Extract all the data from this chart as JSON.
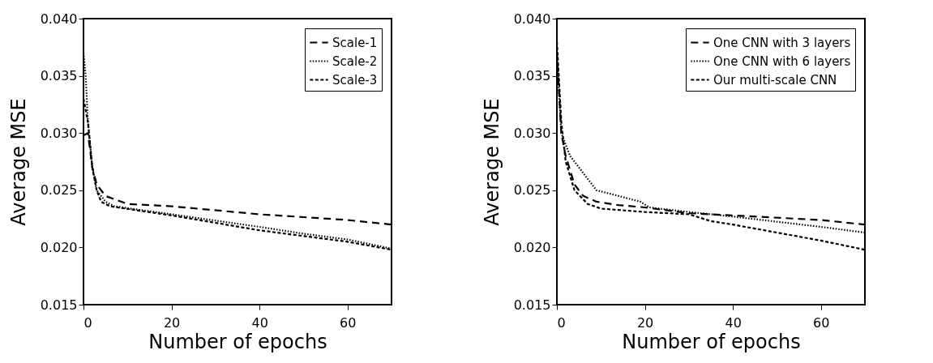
{
  "chart_data": [
    {
      "type": "line",
      "xlabel": "Number of epochs",
      "ylabel": "Average MSE",
      "xlim": [
        0,
        70
      ],
      "ylim": [
        0.015,
        0.04
      ],
      "xticks": [
        0,
        20,
        40,
        60
      ],
      "yticks": [
        0.015,
        {
          "value": 0.02,
          "label": "0.020"
        },
        0.025,
        {
          "value": 0.03,
          "label": "0.030"
        },
        0.035,
        {
          "value": 0.04,
          "label": "0.040"
        }
      ],
      "legend": "top right",
      "series": [
        {
          "name": "Scale-1",
          "color": "#000000",
          "line_style": "dashed",
          "x": [
            0,
            1,
            2,
            3,
            5,
            10,
            20,
            40,
            60,
            70
          ],
          "values": [
            0.0298,
            0.03,
            0.027,
            0.0255,
            0.0245,
            0.0238,
            0.0236,
            0.0229,
            0.0224,
            0.022
          ]
        },
        {
          "name": "Scale-2",
          "color": "#000000",
          "line_style": "dotted",
          "x": [
            0,
            0.5,
            1,
            2,
            3,
            5,
            7,
            20,
            40,
            50,
            60,
            70
          ],
          "values": [
            0.037,
            0.035,
            0.031,
            0.027,
            0.025,
            0.024,
            0.0236,
            0.0229,
            0.0218,
            0.0212,
            0.0207,
            0.0199
          ]
        },
        {
          "name": "Scale-3",
          "color": "#000000",
          "line_style": "dashed",
          "x": [
            0,
            1,
            2,
            3,
            4,
            6,
            20,
            40,
            50,
            60,
            70
          ],
          "values": [
            0.033,
            0.031,
            0.027,
            0.025,
            0.024,
            0.0236,
            0.0228,
            0.0215,
            0.021,
            0.0205,
            0.0198
          ]
        }
      ]
    },
    {
      "type": "line",
      "xlabel": "Number of epochs",
      "ylabel": "Average MSE",
      "xlim": [
        0,
        70
      ],
      "ylim": [
        0.015,
        0.04
      ],
      "xticks": [
        0,
        20,
        40,
        60
      ],
      "yticks": [
        0.015,
        {
          "value": 0.02,
          "label": "0.020"
        },
        0.025,
        {
          "value": 0.03,
          "label": "0.030"
        },
        0.035,
        {
          "value": 0.04,
          "label": "0.040"
        }
      ],
      "legend": "top right",
      "series": [
        {
          "name": "One CNN with 3 layers",
          "color": "#000000",
          "line_style": "dashed",
          "x": [
            0,
            1,
            2,
            4,
            6,
            9,
            14,
            20,
            30,
            40,
            60,
            70
          ],
          "values": [
            0.037,
            0.03,
            0.028,
            0.0255,
            0.0245,
            0.024,
            0.0237,
            0.0235,
            0.023,
            0.0228,
            0.0224,
            0.022
          ]
        },
        {
          "name": "One CNN with 6 layers",
          "color": "#000000",
          "line_style": "dotted",
          "x": [
            0,
            1,
            3,
            6,
            9,
            19,
            21,
            30,
            40,
            60,
            70
          ],
          "values": [
            0.037,
            0.03,
            0.028,
            0.0265,
            0.025,
            0.024,
            0.0235,
            0.0231,
            0.0227,
            0.0218,
            0.0213
          ]
        },
        {
          "name": "Our multi-scale CNN",
          "color": "#000000",
          "line_style": "dashed",
          "x": [
            0,
            1,
            2,
            4,
            7,
            10,
            20,
            30,
            35,
            40,
            50,
            60,
            70
          ],
          "values": [
            0.038,
            0.031,
            0.0275,
            0.025,
            0.0238,
            0.0234,
            0.0231,
            0.0229,
            0.0223,
            0.022,
            0.0213,
            0.0206,
            0.0198
          ]
        }
      ]
    }
  ]
}
